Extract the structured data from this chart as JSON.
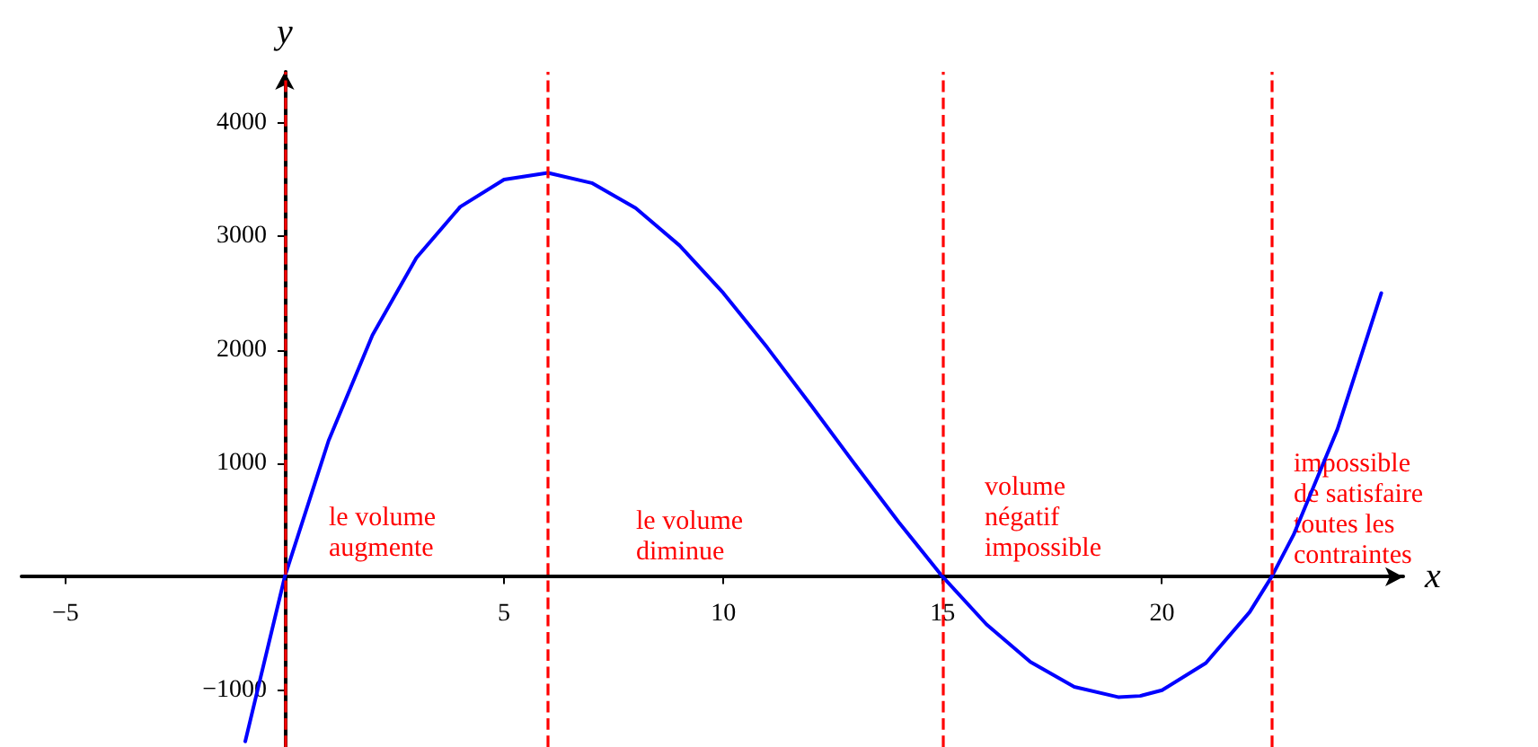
{
  "chart_data": {
    "type": "line",
    "xlabel": "x",
    "ylabel": "y",
    "x": [
      -0.9,
      0,
      1,
      2,
      3,
      4,
      5,
      6,
      7,
      8,
      9,
      10,
      11,
      12,
      13,
      14,
      15,
      16,
      17,
      18,
      19,
      19.5,
      20,
      21,
      22,
      22.5,
      23,
      24,
      25
    ],
    "series": [
      {
        "color": "#0000ff",
        "values": [
          -1450,
          0,
          1200,
          2130,
          2810,
          3260,
          3500,
          3560,
          3470,
          3250,
          2920,
          2500,
          2020,
          1510,
          990,
          480,
          0,
          -420,
          -750,
          -970,
          -1060,
          -1050,
          -1000,
          -760,
          -310,
          0,
          370,
          1300,
          2500
        ]
      }
    ],
    "xlim": [
      -6,
      25.5
    ],
    "ylim": [
      -1500,
      4450
    ],
    "xticks": [
      -5,
      5,
      10,
      15,
      20
    ],
    "yticks": [
      -1000,
      1000,
      2000,
      3000,
      4000
    ],
    "grid": false,
    "marker": "none",
    "line_style": "solid",
    "ref_lines": [
      {
        "axis": "x",
        "value": 0,
        "color": "#ff0000",
        "line_style": "dashed"
      },
      {
        "axis": "x",
        "value": 6,
        "color": "#ff0000",
        "line_style": "dashed"
      },
      {
        "axis": "x",
        "value": 15,
        "color": "#ff0000",
        "line_style": "dashed"
      },
      {
        "axis": "x",
        "value": 22.5,
        "color": "#ff0000",
        "line_style": "dashed"
      }
    ],
    "annotations": [
      "le volume\naugmente",
      "le volume\ndiminue",
      "volume\nnégatif\nimpossible",
      "impossible\nde satisfaire\ntoutes les\ncontraintes"
    ]
  }
}
